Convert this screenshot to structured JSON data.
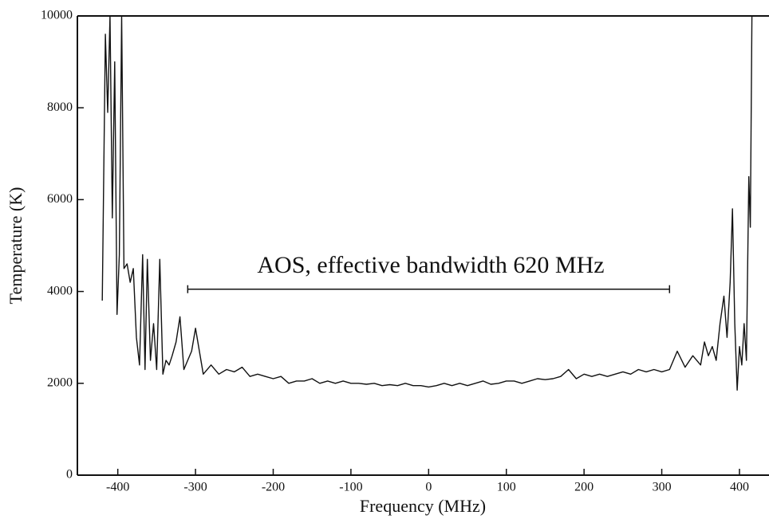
{
  "chart_data": {
    "type": "line",
    "x_label": "Frequency (MHz)",
    "y_label": "Temperature (K)",
    "annotation": "AOS, effective bandwidth 620 MHz",
    "bandwidth_marker": {
      "x": [
        -310,
        310
      ],
      "y": 4050
    },
    "xlim": [
      -452,
      438
    ],
    "ylim": [
      0,
      10000
    ],
    "xticks": [
      -400,
      -300,
      -200,
      -100,
      0,
      100,
      200,
      300,
      400
    ],
    "yticks": [
      0,
      2000,
      4000,
      6000,
      8000,
      10000
    ],
    "x": [
      -420,
      -416,
      -413,
      -410,
      -407,
      -404,
      -401,
      -398,
      -395,
      -392,
      -388,
      -384,
      -380,
      -376,
      -372,
      -368,
      -365,
      -362,
      -358,
      -354,
      -350,
      -346,
      -342,
      -338,
      -334,
      -330,
      -325,
      -320,
      -315,
      -310,
      -305,
      -300,
      -290,
      -280,
      -270,
      -260,
      -250,
      -240,
      -230,
      -220,
      -210,
      -200,
      -190,
      -180,
      -170,
      -160,
      -150,
      -140,
      -130,
      -120,
      -110,
      -100,
      -90,
      -80,
      -70,
      -60,
      -50,
      -40,
      -30,
      -20,
      -10,
      0,
      10,
      20,
      30,
      40,
      50,
      60,
      70,
      80,
      90,
      100,
      110,
      120,
      130,
      140,
      150,
      160,
      170,
      180,
      190,
      200,
      210,
      220,
      230,
      240,
      250,
      260,
      270,
      280,
      290,
      300,
      310,
      320,
      330,
      340,
      350,
      355,
      360,
      365,
      370,
      375,
      380,
      384,
      388,
      391,
      394,
      397,
      400,
      403,
      406,
      409,
      412,
      414,
      416
    ],
    "series": [
      {
        "color": "#111111",
        "values": [
          3800,
          9600,
          7900,
          10000,
          5600,
          9000,
          3500,
          4800,
          10000,
          4500,
          4600,
          4200,
          4500,
          3000,
          2400,
          4800,
          2300,
          4700,
          2500,
          3300,
          2300,
          4700,
          2200,
          2500,
          2400,
          2600,
          2900,
          3450,
          2300,
          2500,
          2700,
          3200,
          2200,
          2400,
          2200,
          2300,
          2250,
          2350,
          2150,
          2200,
          2150,
          2100,
          2150,
          2000,
          2050,
          2050,
          2100,
          2000,
          2050,
          2000,
          2050,
          2000,
          2000,
          1980,
          2000,
          1950,
          1970,
          1950,
          2000,
          1950,
          1950,
          1920,
          1950,
          2000,
          1950,
          2000,
          1950,
          2000,
          2050,
          1980,
          2000,
          2050,
          2050,
          2000,
          2050,
          2100,
          2080,
          2100,
          2150,
          2300,
          2100,
          2200,
          2150,
          2200,
          2150,
          2200,
          2250,
          2200,
          2300,
          2250,
          2300,
          2250,
          2300,
          2700,
          2350,
          2600,
          2400,
          2900,
          2600,
          2800,
          2500,
          3300,
          3900,
          3000,
          4200,
          5800,
          3300,
          1850,
          2800,
          2400,
          3300,
          2500,
          6500,
          5400,
          10000
        ]
      }
    ]
  }
}
